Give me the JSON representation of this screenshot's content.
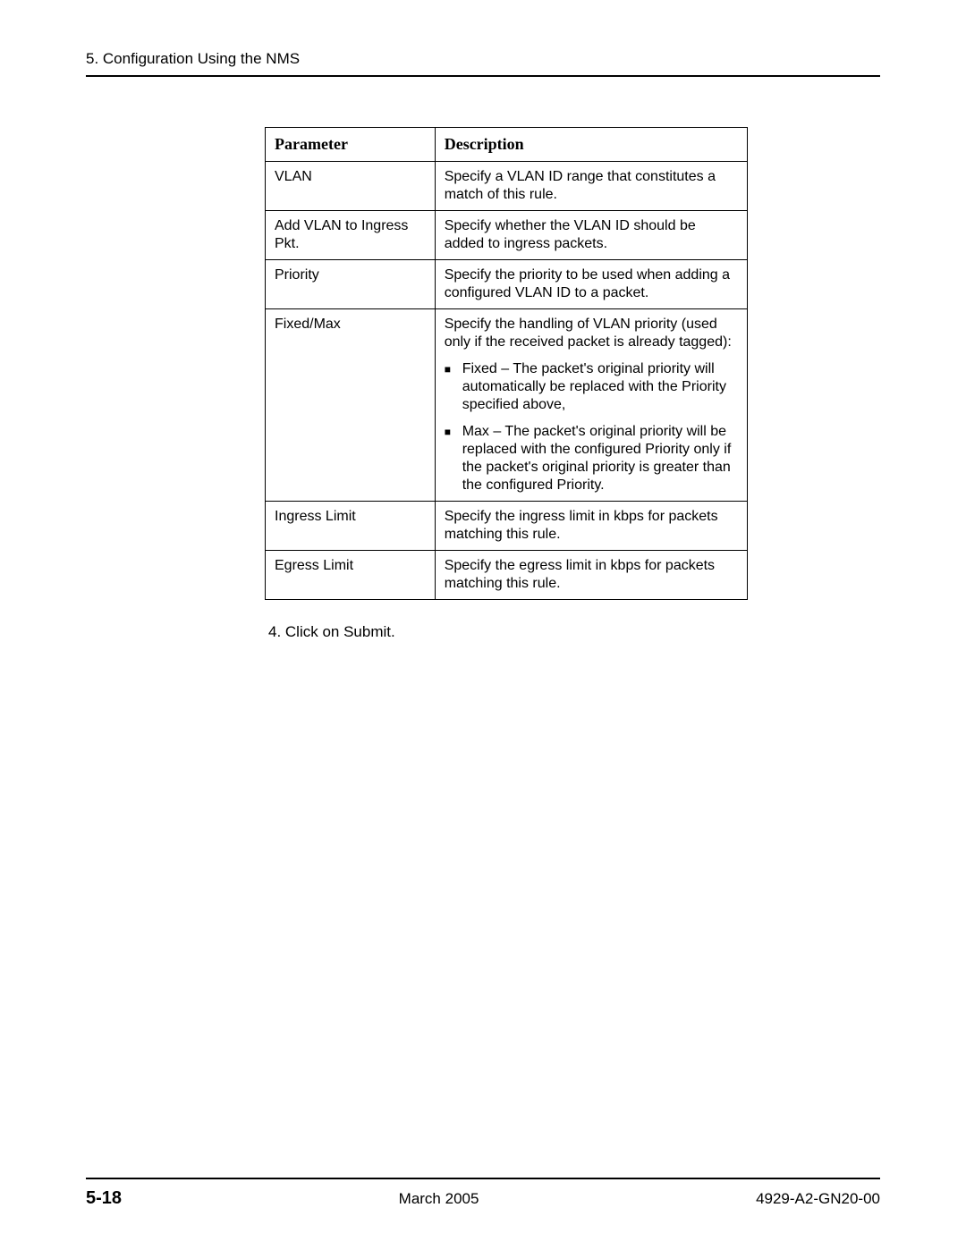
{
  "header": {
    "chapter": "5. Configuration Using the NMS"
  },
  "table": {
    "columns": [
      "Parameter",
      "Description"
    ],
    "rows": [
      {
        "param": "VLAN",
        "desc": [
          "Specify a VLAN ID range that constitutes a match of this rule."
        ],
        "bullets": []
      },
      {
        "param": "Add VLAN to Ingress Pkt.",
        "desc": [
          "Specify whether the VLAN ID should be added to ingress packets."
        ],
        "bullets": []
      },
      {
        "param": "Priority",
        "desc": [
          "Specify the priority to be used when adding a configured VLAN ID to a packet."
        ],
        "bullets": []
      },
      {
        "param": "Fixed/Max",
        "desc": [
          "Specify the handling of VLAN priority (used only if the received packet is already tagged):"
        ],
        "bullets": [
          "Fixed – The packet's original priority will automatically be replaced with the Priority specified above,",
          "Max – The packet's original priority will be replaced with the configured Priority only if the packet's original priority is greater than the configured Priority."
        ]
      },
      {
        "param": "Ingress Limit",
        "desc": [
          "Specify the ingress limit in kbps for packets matching this rule."
        ],
        "bullets": []
      },
      {
        "param": "Egress Limit",
        "desc": [
          "Specify the egress limit in kbps for packets matching this rule."
        ],
        "bullets": []
      }
    ]
  },
  "step": "4.  Click on Submit.",
  "footer": {
    "page": "5-18",
    "date": "March 2005",
    "docnum": "4929-A2-GN20-00"
  },
  "style": {
    "bullet_glyph": "■"
  }
}
